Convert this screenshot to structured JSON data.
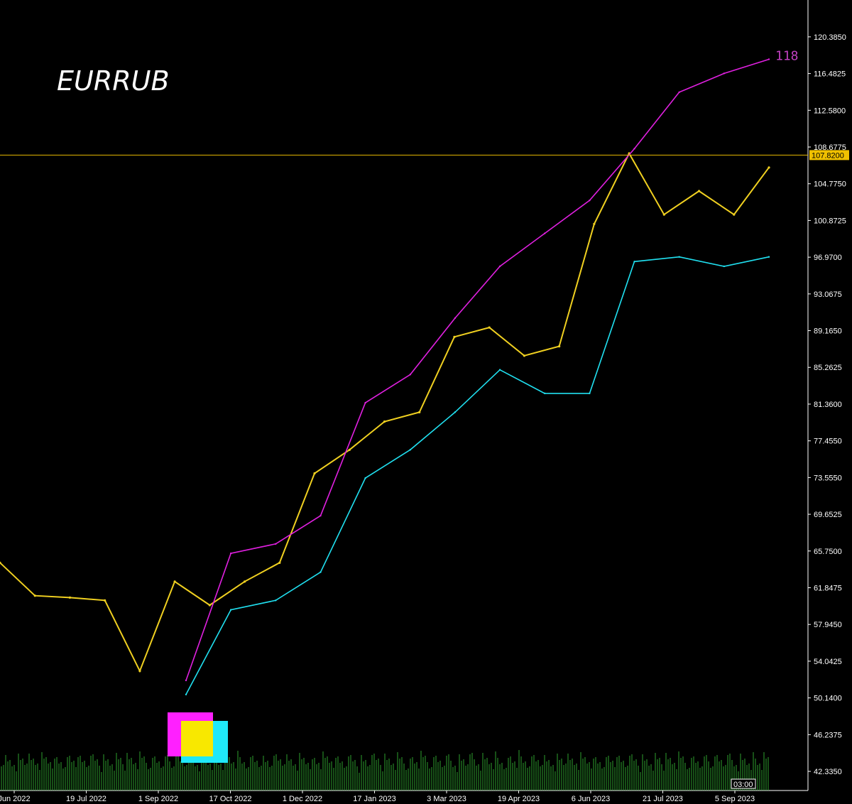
{
  "title": "EURRUB",
  "chart_data": {
    "type": "line",
    "title": "EURRUB",
    "ylim": [
      40.3,
      124.3
    ],
    "y_ticks": [
      "120.3850",
      "116.4825",
      "112.5800",
      "108.6775",
      "104.7750",
      "100.8725",
      "96.9700",
      "93.0675",
      "89.1650",
      "85.2625",
      "81.3600",
      "77.4550",
      "73.5550",
      "69.6525",
      "65.7500",
      "61.8475",
      "57.9450",
      "54.0425",
      "50.1400",
      "46.2375",
      "42.3350"
    ],
    "x_ticks": [
      "Jun 2022",
      "19 Jul 2022",
      "1 Sep 2022",
      "17 Oct 2022",
      "1 Dec 2022",
      "17 Jan 2023",
      "3 Mar 2023",
      "19 Apr 2023",
      "6 Jun 2023",
      "21 Jul 2023",
      "5 Sep 2023"
    ],
    "current_price_label": "107.8200",
    "current_price": 107.82,
    "upper_band_end_label": "118",
    "time_label": "03:00",
    "series": [
      {
        "name": "",
        "color": "#f0d020",
        "x": [
          "Jun 2022",
          "19 Jul 2022",
          "Aug 2022",
          "1 Sep 2022",
          "15 Sep 2022",
          "Oct 2022",
          "17 Oct 2022",
          "Nov 2022",
          "1 Dec 2022",
          "10 Dec 2022",
          "17 Jan 2023",
          "Feb 2023",
          "3 Mar 2023",
          "Apr 2023",
          "19 Apr 2023",
          "May 2023",
          "6 Jun 2023",
          "Jul 2023",
          "21 Jul 2023",
          "Aug 2023",
          "5 Sep 2023",
          "Sep 2023",
          "Oct 2023"
        ],
        "values": [
          64.5,
          61.0,
          60.8,
          60.5,
          53.0,
          62.5,
          60.0,
          62.5,
          64.5,
          74.0,
          76.5,
          79.5,
          80.5,
          88.5,
          89.5,
          86.5,
          87.5,
          100.5,
          108.0,
          101.5,
          104.0,
          101.5,
          106.5
        ]
      },
      {
        "name": "",
        "color": "#e020e0",
        "x": [
          "15 Sep 2022",
          "Oct 2022",
          "17 Oct 2022",
          "1 Dec 2022",
          "10 Dec 2022",
          "17 Jan 2023",
          "3 Mar 2023",
          "Apr 2023",
          "19 Apr 2023",
          "6 Jun 2023",
          "21 Jul 2023",
          "Aug 2023",
          "5 Sep 2023",
          "Oct 2023"
        ],
        "values": [
          52.0,
          65.5,
          66.5,
          69.5,
          81.5,
          84.5,
          90.5,
          96.0,
          99.5,
          103.0,
          108.5,
          114.5,
          116.5,
          118.0
        ]
      },
      {
        "name": "",
        "color": "#20e0f0",
        "x": [
          "15 Sep 2022",
          "Oct 2022",
          "17 Oct 2022",
          "1 Dec 2022",
          "10 Dec 2022",
          "17 Jan 2023",
          "3 Mar 2023",
          "Apr 2023",
          "19 Apr 2023",
          "6 Jun 2023",
          "21 Jul 2023",
          "Aug 2023",
          "5 Sep 2023",
          "Oct 2023"
        ],
        "values": [
          50.5,
          59.5,
          60.5,
          63.5,
          73.5,
          76.5,
          80.5,
          85.0,
          82.5,
          82.5,
          96.5,
          97.0,
          96.0,
          97.0
        ]
      }
    ]
  }
}
